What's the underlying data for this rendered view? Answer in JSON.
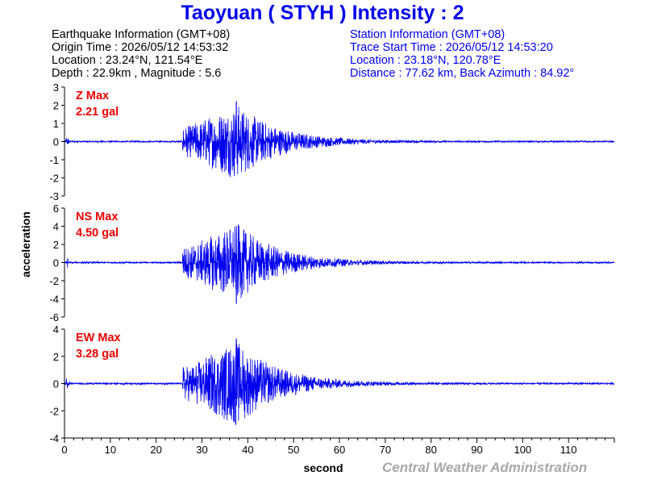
{
  "title": "Taoyuan ( STYH ) Intensity : 2",
  "earthquake": {
    "heading": "Earthquake Information (GMT+08)",
    "origin_time": "Origin Time : 2026/05/12 14:53:32",
    "location": "Location : 23.24°N, 121.54°E",
    "depth_mag": "Depth : 22.9km , Magnitude : 5.6"
  },
  "station": {
    "heading": "Station Information (GMT+08)",
    "trace_start": "Trace Start Time : 2026/05/12 14:53:20",
    "location": "Location : 23.18°N, 120.78°E",
    "distance": "Distance : 77.62 km, Back Azimuth : 84.92°"
  },
  "watermark": "Central Weather Administration",
  "colors": {
    "trace": "#0000ee",
    "label": "#ee0000",
    "title": "#0000ee"
  },
  "chart_data": {
    "type": "line",
    "xlabel": "second",
    "ylabel": "acceleration",
    "xlim": [
      0,
      120
    ],
    "xticks": [
      0,
      10,
      20,
      30,
      40,
      50,
      60,
      70,
      80,
      90,
      100,
      110
    ],
    "grid": false,
    "panels": [
      {
        "component": "Z",
        "label": "Z Max",
        "max_text": "2.21 gal",
        "max": 2.21,
        "ylim": [
          -3,
          3
        ],
        "yticks": [
          3,
          2,
          1,
          0,
          -1,
          -2,
          -3
        ],
        "onset": 25.8,
        "peak_time": 37.5
      },
      {
        "component": "NS",
        "label": "NS Max",
        "max_text": "4.50 gal",
        "max": 4.5,
        "ylim": [
          -6,
          6
        ],
        "yticks": [
          6,
          4,
          2,
          0,
          -2,
          -4,
          -6
        ],
        "onset": 25.8,
        "peak_time": 37.5
      },
      {
        "component": "EW",
        "label": "EW Max",
        "max_text": "3.28 gal",
        "max": 3.28,
        "ylim": [
          -4,
          4
        ],
        "yticks": [
          4,
          2,
          0,
          -2,
          -4
        ],
        "onset": 25.8,
        "peak_time": 37.5
      }
    ]
  }
}
